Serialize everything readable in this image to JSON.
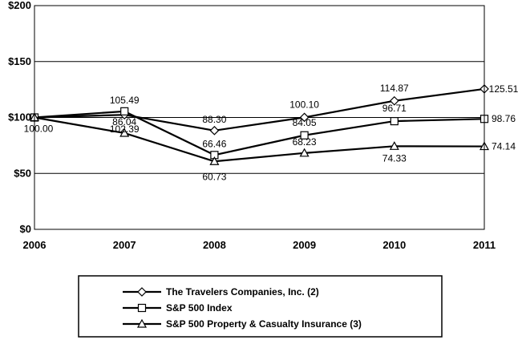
{
  "chart_data": {
    "type": "line",
    "categories": [
      "2006",
      "2007",
      "2008",
      "2009",
      "2010",
      "2011"
    ],
    "y_ticks": [
      {
        "value": 0,
        "label": "$0"
      },
      {
        "value": 50,
        "label": "$50"
      },
      {
        "value": 100,
        "label": "$100"
      },
      {
        "value": 150,
        "label": "$150"
      },
      {
        "value": 200,
        "label": "$200"
      }
    ],
    "ylim": [
      0,
      200
    ],
    "grid": "horizontal",
    "legend_position": "bottom",
    "series": [
      {
        "name": "The Travelers Companies, Inc. (2)",
        "marker": "diamond",
        "values": [
          100.0,
          102.39,
          88.3,
          100.1,
          114.87,
          125.51
        ],
        "labels": [
          "",
          "102.39",
          "88.30",
          "100.10",
          "114.87",
          "125.51"
        ]
      },
      {
        "name": "S&P 500 Index",
        "marker": "square",
        "values": [
          100.0,
          105.49,
          66.46,
          84.05,
          96.71,
          98.76
        ],
        "labels": [
          "100.00",
          "105.49",
          "66.46",
          "84.05",
          "96.71",
          "98.76"
        ]
      },
      {
        "name": "S&P 500 Property & Casualty Insurance (3)",
        "marker": "triangle",
        "values": [
          100.0,
          86.04,
          60.73,
          68.23,
          74.33,
          74.14
        ],
        "labels": [
          "",
          "86.04",
          "60.73",
          "68.23",
          "74.33",
          "74.14"
        ]
      }
    ]
  }
}
